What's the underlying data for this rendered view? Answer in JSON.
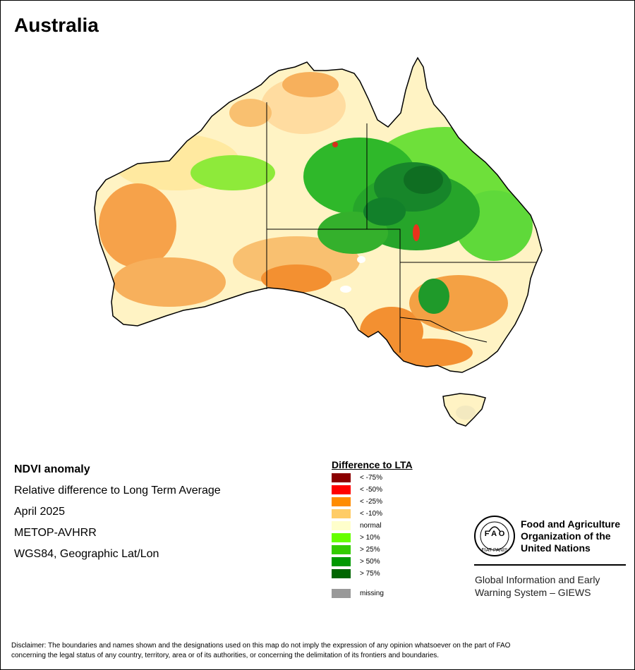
{
  "map": {
    "title": "Australia"
  },
  "info": {
    "heading": "NDVI anomaly",
    "line1": "Relative difference to Long Term Average",
    "line2": "April 2025",
    "line3": "METOP-AVHRR",
    "line4": "WGS84, Geographic Lat/Lon"
  },
  "legend": {
    "title": "Difference to LTA",
    "items": [
      {
        "label": "< -75%",
        "color": "#8b0000"
      },
      {
        "label": "< -50%",
        "color": "#ff0000"
      },
      {
        "label": "< -25%",
        "color": "#ff8c00"
      },
      {
        "label": "< -10%",
        "color": "#ffcc66"
      },
      {
        "label": "normal",
        "color": "#ffffcc"
      },
      {
        "label": "> 10%",
        "color": "#66ff00"
      },
      {
        "label": "> 25%",
        "color": "#33cc00"
      },
      {
        "label": "> 50%",
        "color": "#009900"
      },
      {
        "label": "> 75%",
        "color": "#006600"
      },
      {
        "label": "missing",
        "color": "#999999"
      }
    ]
  },
  "fao": {
    "line1": "Food and Agriculture",
    "line2": "Organization of the",
    "line3": "United Nations",
    "giews1": "Global Information and Early",
    "giews2": "Warning System – GIEWS"
  },
  "disclaimer": {
    "line1": "Disclaimer: The boundaries and names shown and the designations used on this map do not imply the expression of any opinion whatsoever on the part of FAO",
    "line2": "concerning the legal status of any country, territory, area or of its authorities, or concerning the delimitation of its frontiers and boundaries."
  }
}
